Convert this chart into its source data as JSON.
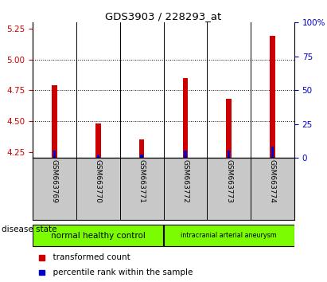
{
  "title": "GDS3903 / 228293_at",
  "categories": [
    "GSM663769",
    "GSM663770",
    "GSM663771",
    "GSM663772",
    "GSM663773",
    "GSM663774"
  ],
  "transformed_count": [
    4.79,
    4.48,
    4.35,
    4.85,
    4.68,
    5.19
  ],
  "percentile_rank": [
    5.5,
    2.5,
    2.5,
    5.5,
    5.5,
    8.5
  ],
  "ylim_left": [
    4.2,
    5.3
  ],
  "ylim_right": [
    0,
    100
  ],
  "yticks_left": [
    4.25,
    4.5,
    4.75,
    5.0,
    5.25
  ],
  "yticks_right": [
    0,
    25,
    50,
    75,
    100
  ],
  "bar_bottom": 4.2,
  "red_color": "#cc0000",
  "blue_color": "#0000cc",
  "group1_label": "normal healthy control",
  "group2_label": "intracranial arterial aneurysm",
  "disease_state_label": "disease state",
  "legend1_label": "  transformed count",
  "legend2_label": "  percentile rank within the sample",
  "background_color": "#ffffff",
  "tick_area_color": "#c8c8c8",
  "group_color": "#7cfc00",
  "red_bar_width": 0.12,
  "blue_bar_width": 0.06,
  "grid_dotted_at": [
    4.5,
    4.75,
    5.0
  ]
}
